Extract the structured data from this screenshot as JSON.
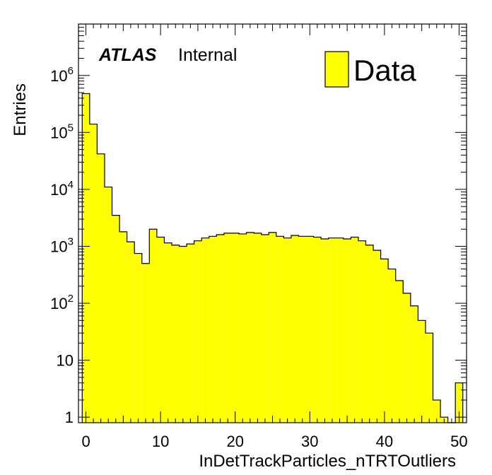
{
  "chart_data": {
    "type": "bar",
    "xlabel": "InDetTrackParticles_nTRTOutliers",
    "ylabel": "Entries",
    "yscale": "log",
    "xlim": [
      -1,
      51
    ],
    "ylim": [
      0.8,
      8000000
    ],
    "x_ticks": [
      0,
      10,
      20,
      30,
      40,
      50
    ],
    "y_ticks": [
      {
        "value": 1,
        "base": "1",
        "exp": ""
      },
      {
        "value": 10,
        "base": "10",
        "exp": ""
      },
      {
        "value": 100,
        "base": "10",
        "exp": "2"
      },
      {
        "value": 1000,
        "base": "10",
        "exp": "3"
      },
      {
        "value": 10000,
        "base": "10",
        "exp": "4"
      },
      {
        "value": 100000,
        "base": "10",
        "exp": "5"
      },
      {
        "value": 1000000,
        "base": "10",
        "exp": "6"
      }
    ],
    "bin_width": 1,
    "bin_low_edges": [
      -0.5,
      0.5,
      1.5,
      2.5,
      3.5,
      4.5,
      5.5,
      6.5,
      7.5,
      8.5,
      9.5,
      10.5,
      11.5,
      12.5,
      13.5,
      14.5,
      15.5,
      16.5,
      17.5,
      18.5,
      19.5,
      20.5,
      21.5,
      22.5,
      23.5,
      24.5,
      25.5,
      26.5,
      27.5,
      28.5,
      29.5,
      30.5,
      31.5,
      32.5,
      33.5,
      34.5,
      35.5,
      36.5,
      37.5,
      38.5,
      39.5,
      40.5,
      41.5,
      42.5,
      43.5,
      44.5,
      45.5,
      46.5,
      47.5,
      48.5,
      49.5
    ],
    "series": [
      {
        "name": "Data",
        "color": "#ffff00",
        "values": [
          480000,
          140000,
          42000,
          11000,
          3500,
          1800,
          1200,
          750,
          500,
          2000,
          1450,
          1150,
          1050,
          1000,
          1100,
          1250,
          1400,
          1500,
          1600,
          1700,
          1700,
          1650,
          1750,
          1700,
          1600,
          1750,
          1500,
          1400,
          1550,
          1500,
          1500,
          1450,
          1350,
          1400,
          1400,
          1350,
          1450,
          1250,
          1050,
          850,
          600,
          400,
          250,
          150,
          90,
          50,
          30,
          2,
          1,
          0,
          4
        ]
      }
    ],
    "legend": {
      "position": "top-right",
      "entries": [
        "Data"
      ]
    },
    "annotations": {
      "atlas": "ATLAS",
      "status": "Internal"
    }
  }
}
